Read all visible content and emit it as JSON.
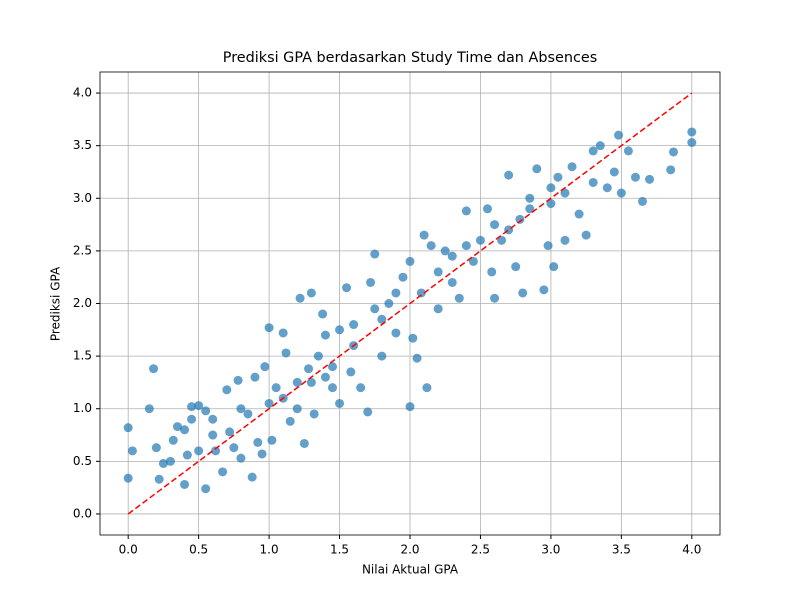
{
  "chart_data": {
    "type": "scatter",
    "title": "Prediksi GPA berdasarkan Study Time dan Absences",
    "xlabel": "Nilai Aktual GPA",
    "ylabel": "Prediksi GPA",
    "xlim": [
      -0.2,
      4.2
    ],
    "ylim": [
      -0.2,
      4.2
    ],
    "xticks": [
      {
        "value": 0,
        "label": "0.0"
      },
      {
        "value": 0.5,
        "label": "0.5"
      },
      {
        "value": 1,
        "label": "1.0"
      },
      {
        "value": 1.5,
        "label": "1.5"
      },
      {
        "value": 2,
        "label": "2.0"
      },
      {
        "value": 2.5,
        "label": "2.5"
      },
      {
        "value": 3,
        "label": "3.0"
      },
      {
        "value": 3.5,
        "label": "3.5"
      },
      {
        "value": 4,
        "label": "4.0"
      }
    ],
    "yticks": [
      {
        "value": 0,
        "label": "0.0"
      },
      {
        "value": 0.5,
        "label": "0.5"
      },
      {
        "value": 1,
        "label": "1.0"
      },
      {
        "value": 1.5,
        "label": "1.5"
      },
      {
        "value": 2,
        "label": "2.0"
      },
      {
        "value": 2.5,
        "label": "2.5"
      },
      {
        "value": 3,
        "label": "3.0"
      },
      {
        "value": 3.5,
        "label": "3.5"
      },
      {
        "value": 4,
        "label": "4.0"
      }
    ],
    "grid": true,
    "series": [
      {
        "color": "#1f77b4",
        "x": [
          0,
          0,
          0.03,
          0.15,
          0.18,
          0.2,
          0.22,
          0.25,
          0.3,
          0.32,
          0.35,
          0.4,
          0.4,
          0.42,
          0.45,
          0.45,
          0.5,
          0.5,
          0.55,
          0.55,
          0.6,
          0.62,
          0.67,
          0.7,
          0.72,
          0.75,
          0.78,
          0.8,
          0.85,
          0.88,
          0.9,
          0.92,
          0.95,
          0.97,
          1.0,
          1.0,
          1.02,
          1.05,
          1.1,
          1.12,
          1.15,
          1.2,
          1.22,
          1.25,
          1.28,
          1.3,
          1.32,
          1.35,
          1.38,
          1.4,
          1.45,
          1.5,
          1.5,
          1.55,
          1.58,
          1.6,
          1.65,
          1.7,
          1.72,
          1.75,
          1.8,
          1.85,
          1.9,
          1.95,
          2.0,
          2.0,
          2.02,
          2.05,
          2.08,
          2.1,
          2.12,
          2.15,
          2.2,
          2.25,
          2.3,
          2.35,
          2.4,
          2.45,
          2.5,
          2.55,
          2.58,
          2.6,
          2.65,
          2.7,
          2.75,
          2.78,
          2.8,
          2.85,
          2.9,
          2.95,
          2.98,
          3.0,
          3.02,
          3.05,
          3.1,
          3.15,
          3.2,
          3.25,
          3.3,
          3.35,
          3.4,
          3.45,
          3.48,
          3.5,
          3.55,
          3.6,
          3.65,
          3.7,
          3.85,
          3.87,
          4.0,
          4.0,
          0.6,
          0.8,
          1.1,
          1.3,
          1.45,
          1.6,
          1.75,
          1.9,
          2.2,
          2.4,
          2.6,
          2.85,
          3.1,
          3.3,
          1.2,
          1.4,
          1.8,
          2.3,
          2.7,
          3.0
        ],
        "values": [
          0.82,
          0.34,
          0.6,
          1.0,
          1.38,
          0.63,
          0.33,
          0.48,
          0.5,
          0.7,
          0.83,
          0.8,
          0.28,
          0.56,
          0.9,
          1.02,
          0.6,
          1.03,
          0.24,
          0.98,
          0.75,
          0.6,
          0.4,
          1.18,
          0.78,
          0.63,
          1.27,
          0.53,
          0.95,
          0.35,
          1.3,
          0.68,
          0.57,
          1.4,
          1.05,
          1.77,
          0.7,
          1.2,
          1.72,
          1.53,
          0.88,
          1.25,
          2.05,
          0.67,
          1.38,
          2.1,
          0.95,
          1.5,
          1.9,
          1.3,
          1.2,
          1.05,
          1.75,
          2.15,
          1.35,
          1.6,
          1.2,
          0.97,
          2.2,
          2.47,
          1.5,
          2.0,
          1.72,
          2.25,
          1.02,
          2.4,
          1.67,
          1.48,
          2.1,
          2.65,
          1.2,
          2.55,
          1.95,
          2.5,
          2.2,
          2.05,
          2.88,
          2.4,
          2.6,
          2.9,
          2.3,
          2.05,
          2.6,
          3.22,
          2.35,
          2.8,
          2.1,
          3.0,
          3.28,
          2.13,
          2.55,
          3.1,
          2.35,
          3.2,
          2.6,
          3.3,
          2.85,
          2.65,
          3.45,
          3.5,
          3.1,
          3.25,
          3.6,
          3.05,
          3.45,
          3.2,
          2.97,
          3.18,
          3.27,
          3.44,
          3.53,
          3.63,
          0.9,
          1.0,
          1.1,
          1.25,
          1.4,
          1.8,
          1.95,
          2.1,
          2.3,
          2.55,
          2.75,
          2.9,
          3.05,
          3.15,
          1.0,
          1.7,
          1.85,
          2.45,
          2.7,
          2.95
        ]
      }
    ],
    "reference_line": {
      "color": "#ff0000",
      "x": [
        0,
        4
      ],
      "values": [
        0,
        4
      ]
    }
  }
}
